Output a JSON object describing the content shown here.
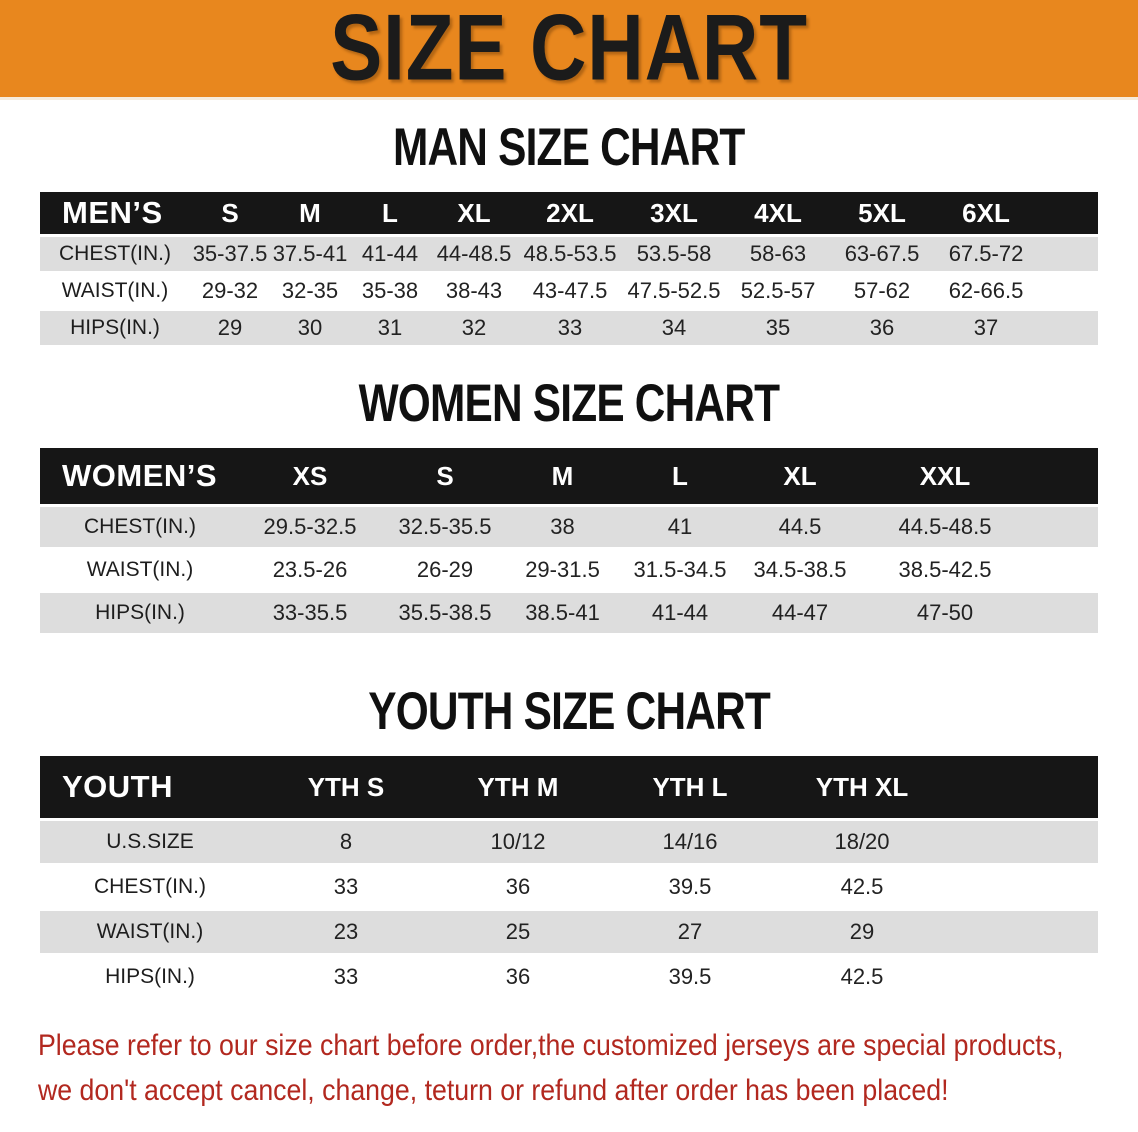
{
  "banner": {
    "title": "SIZE CHART",
    "bg_color": "#e8871e"
  },
  "sections": [
    {
      "title": "MAN SIZE CHART",
      "table": {
        "header": [
          "MEN’S",
          "S",
          "M",
          "L",
          "XL",
          "2XL",
          "3XL",
          "4XL",
          "5XL",
          "6XL"
        ],
        "rows": [
          {
            "label": "CHEST(IN.)",
            "values": [
              "35-37.5",
              "37.5-41",
              "41-44",
              "44-48.5",
              "48.5-53.5",
              "53.5-58",
              "58-63",
              "63-67.5",
              "67.5-72"
            ]
          },
          {
            "label": "WAIST(IN.)",
            "values": [
              "29-32",
              "32-35",
              "35-38",
              "38-43",
              "43-47.5",
              "47.5-52.5",
              "52.5-57",
              "57-62",
              "62-66.5"
            ]
          },
          {
            "label": "HIPS(IN.)",
            "values": [
              "29",
              "30",
              "31",
              "32",
              "33",
              "34",
              "35",
              "36",
              "37"
            ]
          }
        ]
      }
    },
    {
      "title": "WOMEN SIZE CHART",
      "table": {
        "header": [
          "WOMEN’S",
          "XS",
          "S",
          "M",
          "L",
          "XL",
          "XXL"
        ],
        "rows": [
          {
            "label": "CHEST(IN.)",
            "values": [
              "29.5-32.5",
              "32.5-35.5",
              "38",
              "41",
              "44.5",
              "44.5-48.5"
            ]
          },
          {
            "label": "WAIST(IN.)",
            "values": [
              "23.5-26",
              "26-29",
              "29-31.5",
              "31.5-34.5",
              "34.5-38.5",
              "38.5-42.5"
            ]
          },
          {
            "label": "HIPS(IN.)",
            "values": [
              "33-35.5",
              "35.5-38.5",
              "38.5-41",
              "41-44",
              "44-47",
              "47-50"
            ]
          }
        ]
      }
    },
    {
      "title": "YOUTH SIZE CHART",
      "table": {
        "header": [
          "YOUTH",
          "YTH S",
          "YTH M",
          "YTH L",
          "YTH XL"
        ],
        "rows": [
          {
            "label": "U.S.SIZE",
            "values": [
              "8",
              "10/12",
              "14/16",
              "18/20"
            ]
          },
          {
            "label": "CHEST(IN.)",
            "values": [
              "33",
              "36",
              "39.5",
              "42.5"
            ]
          },
          {
            "label": "WAIST(IN.)",
            "values": [
              "23",
              "25",
              "27",
              "29"
            ]
          },
          {
            "label": "HIPS(IN.)",
            "values": [
              "33",
              "36",
              "39.5",
              "42.5"
            ]
          }
        ]
      }
    }
  ],
  "disclaimer": {
    "line1": "Please refer to our size chart before order,the customized jerseys are special products,",
    "line2": "we don't accept cancel, change, teturn or refund after order has been placed!",
    "color": "#b2281f"
  }
}
